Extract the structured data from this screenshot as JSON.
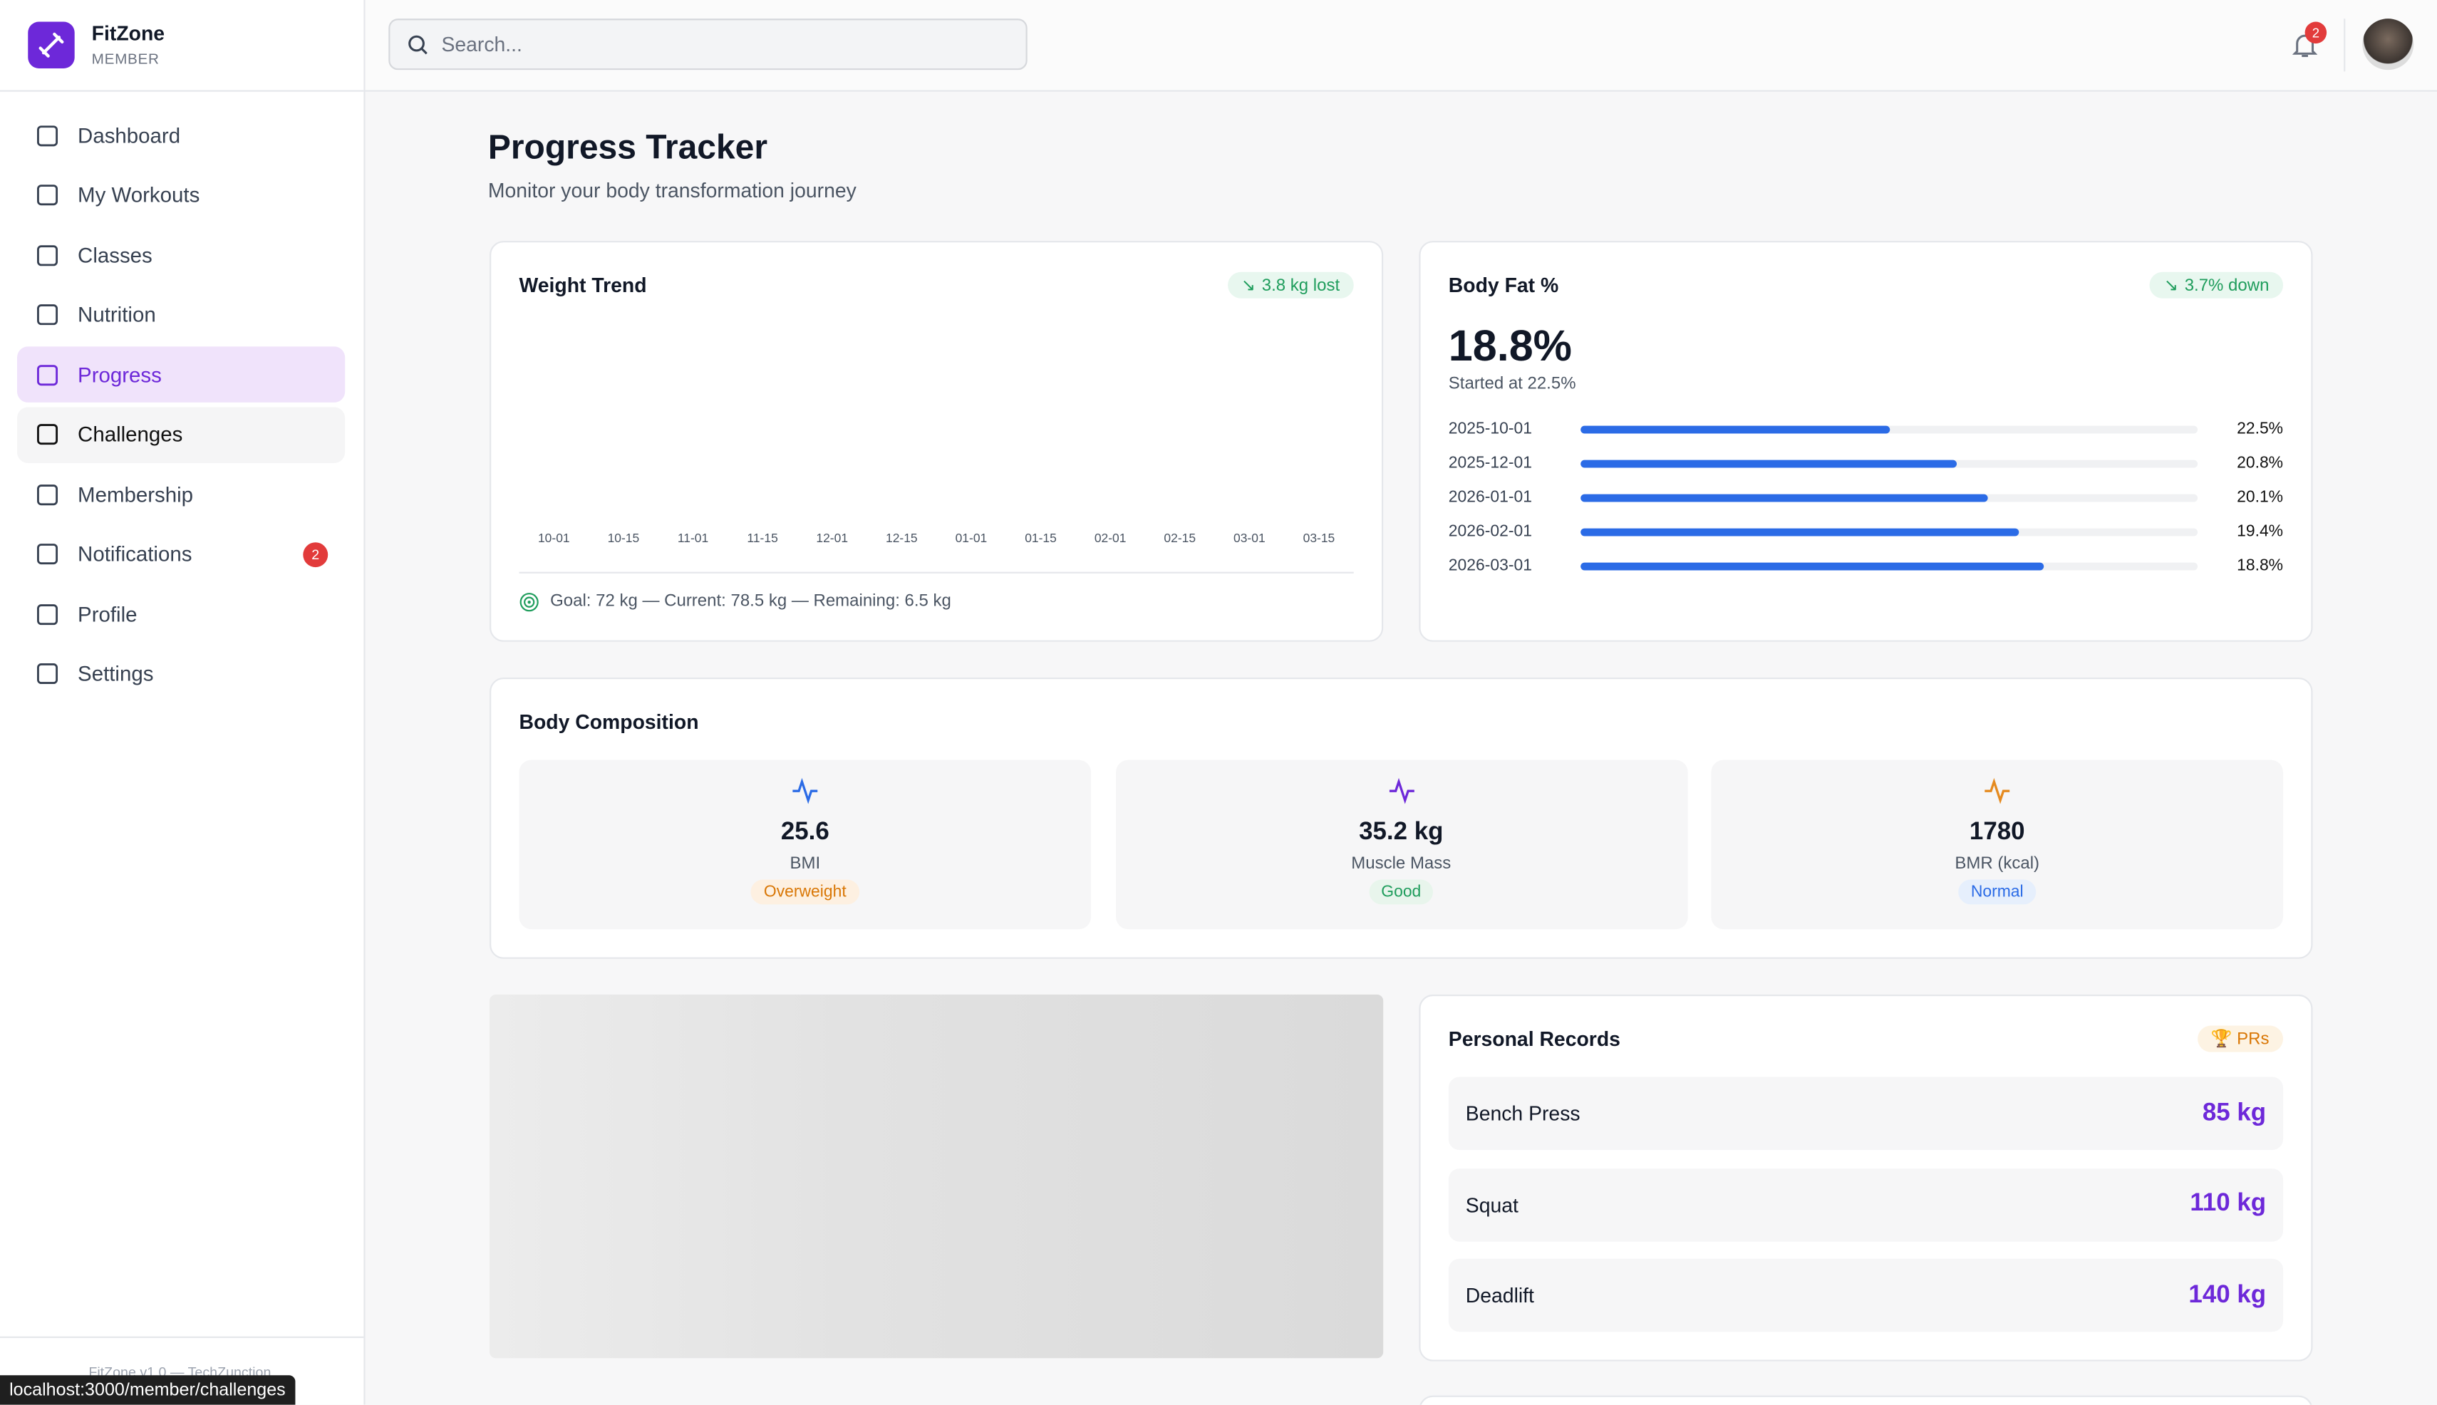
{
  "sidebar": {
    "brand": "FitZone",
    "role": "MEMBER",
    "nav": [
      "Dashboard",
      "My Workouts",
      "Classes",
      "Nutrition",
      "Progress",
      "Challenges",
      "Membership",
      "Notifications",
      "Profile",
      "Settings"
    ],
    "notifications_badge": "2",
    "footer": "FitZone v1.0 — TechZunction"
  },
  "topbar": {
    "search_placeholder": "Search...",
    "notification_count": "2"
  },
  "page": {
    "title": "Progress Tracker",
    "subtitle": "Monitor your body transformation journey"
  },
  "weight_trend": {
    "title": "Weight Trend",
    "badge": "3.8 kg lost",
    "x_labels": [
      "10-01",
      "10-15",
      "11-01",
      "11-15",
      "12-01",
      "12-15",
      "01-01",
      "01-15",
      "02-01",
      "02-15",
      "03-01",
      "03-15"
    ],
    "footer": "Goal: 72 kg — Current: 78.5 kg — Remaining: 6.5 kg"
  },
  "body_fat": {
    "title": "Body Fat %",
    "badge": "3.7% down",
    "current": "18.8%",
    "started": "Started at 22.5%",
    "rows": [
      {
        "date": "2025-10-01",
        "value": "22.5%"
      },
      {
        "date": "2025-12-01",
        "value": "20.8%"
      },
      {
        "date": "2026-01-01",
        "value": "20.1%"
      },
      {
        "date": "2026-02-01",
        "value": "19.4%"
      },
      {
        "date": "2026-03-01",
        "value": "18.8%"
      }
    ]
  },
  "body_composition": {
    "title": "Body Composition",
    "items": [
      {
        "value": "25.6",
        "label": "BMI",
        "status": "Overweight"
      },
      {
        "value": "35.2 kg",
        "label": "Muscle Mass",
        "status": "Good"
      },
      {
        "value": "1780",
        "label": "BMR (kcal)",
        "status": "Normal"
      }
    ]
  },
  "personal_records": {
    "title": "Personal Records",
    "badge": "PRs",
    "items": [
      {
        "exercise": "Bench Press",
        "value": "85 kg"
      },
      {
        "exercise": "Squat",
        "value": "110 kg"
      },
      {
        "exercise": "Deadlift",
        "value": "140 kg"
      }
    ]
  },
  "status_url": "localhost:3000/member/challenges"
}
